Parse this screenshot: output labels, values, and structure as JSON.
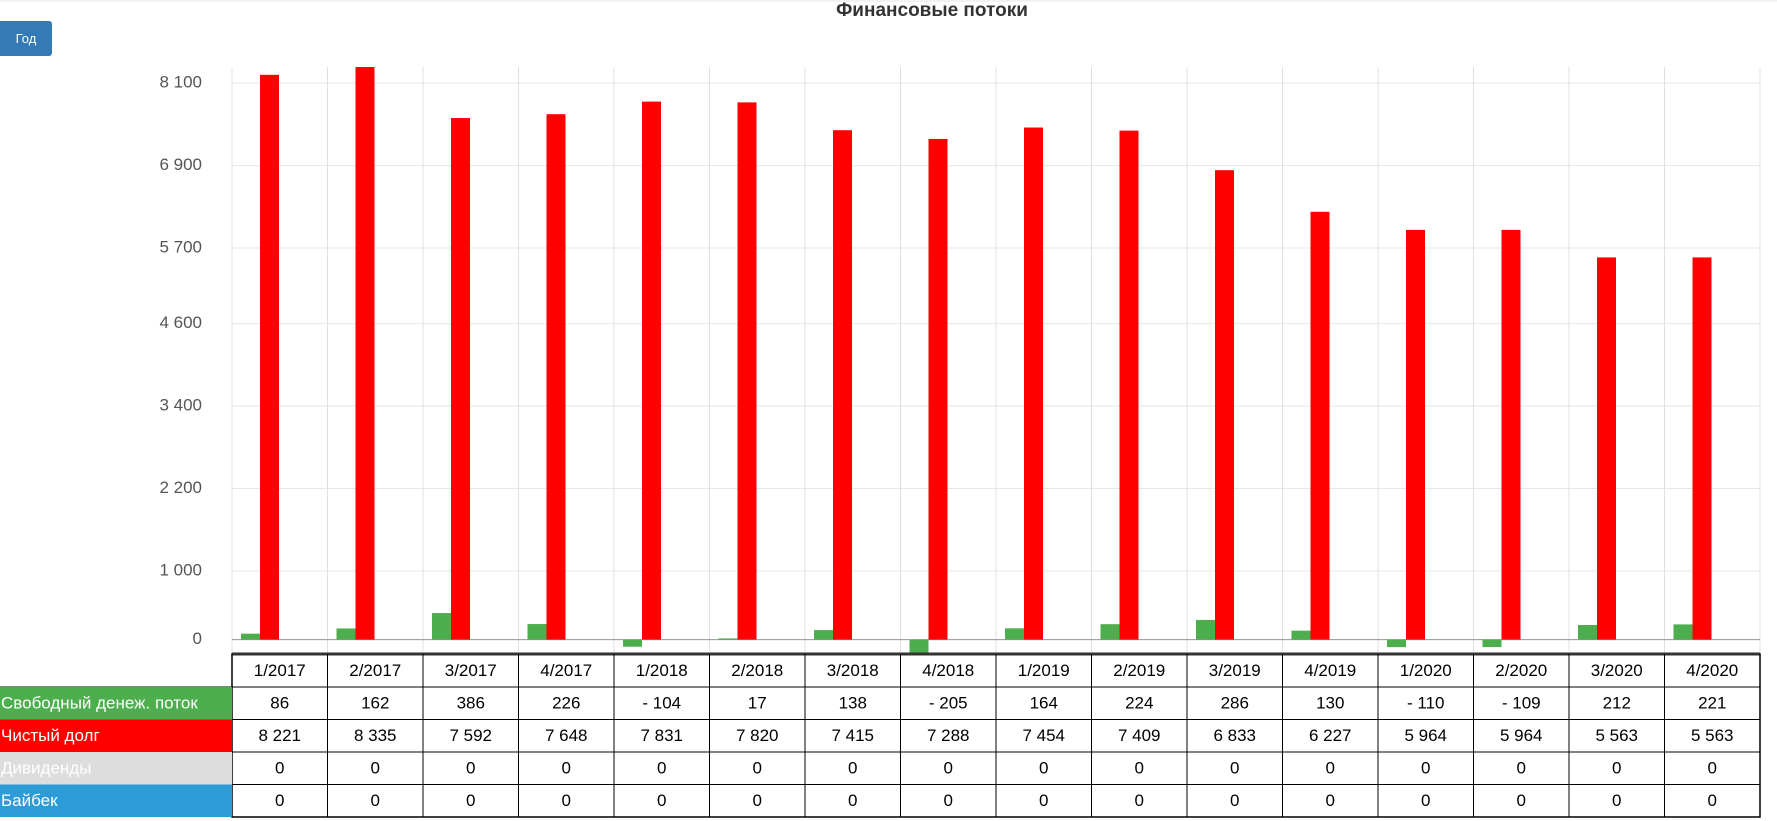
{
  "header": {
    "button": "Год"
  },
  "chart_data": {
    "type": "bar",
    "title": "Финансовые потоки",
    "categories": [
      "1/2017",
      "2/2017",
      "3/2017",
      "4/2017",
      "1/2018",
      "2/2018",
      "3/2018",
      "4/2018",
      "1/2019",
      "2/2019",
      "3/2019",
      "4/2019",
      "1/2020",
      "2/2020",
      "3/2020",
      "4/2020"
    ],
    "series": [
      {
        "name": "Свободный денеж. поток",
        "color": "#4cae4c",
        "values": [
          86,
          162,
          386,
          226,
          -104,
          17,
          138,
          -205,
          164,
          224,
          286,
          130,
          -110,
          -109,
          212,
          221
        ],
        "value_labels": [
          "86",
          "162",
          "386",
          "226",
          "- 104",
          "17",
          "138",
          "- 205",
          "164",
          "224",
          "286",
          "130",
          "- 110",
          "- 109",
          "212",
          "221"
        ]
      },
      {
        "name": "Чистый долг",
        "color": "#ff0000",
        "values": [
          8221,
          8335,
          7592,
          7648,
          7831,
          7820,
          7415,
          7288,
          7454,
          7409,
          6833,
          6227,
          5964,
          5964,
          5563,
          5563
        ],
        "value_labels": [
          "8 221",
          "8 335",
          "7 592",
          "7 648",
          "7 831",
          "7 820",
          "7 415",
          "7 288",
          "7 454",
          "7 409",
          "6 833",
          "6 227",
          "5 964",
          "5 964",
          "5 563",
          "5 563"
        ]
      },
      {
        "name": "Дивиденды",
        "color": "#dddddd",
        "values": [
          0,
          0,
          0,
          0,
          0,
          0,
          0,
          0,
          0,
          0,
          0,
          0,
          0,
          0,
          0,
          0
        ]
      },
      {
        "name": "Байбек",
        "color": "#2d9bd6",
        "values": [
          0,
          0,
          0,
          0,
          0,
          0,
          0,
          0,
          0,
          0,
          0,
          0,
          0,
          0,
          0,
          0
        ]
      }
    ],
    "ylim": [
      -210,
      8335
    ],
    "yticks": [
      0,
      {
        "value": 1000,
        "label": "1 000"
      },
      {
        "value": 2200,
        "label": "2 200"
      },
      {
        "value": 3400,
        "label": "3 400"
      },
      {
        "value": 4600,
        "label": "4 600"
      },
      {
        "value": 5700,
        "label": "5 700"
      },
      {
        "value": 6900,
        "label": "6 900"
      },
      {
        "value": 8100,
        "label": "8 100"
      }
    ],
    "grid": true
  }
}
